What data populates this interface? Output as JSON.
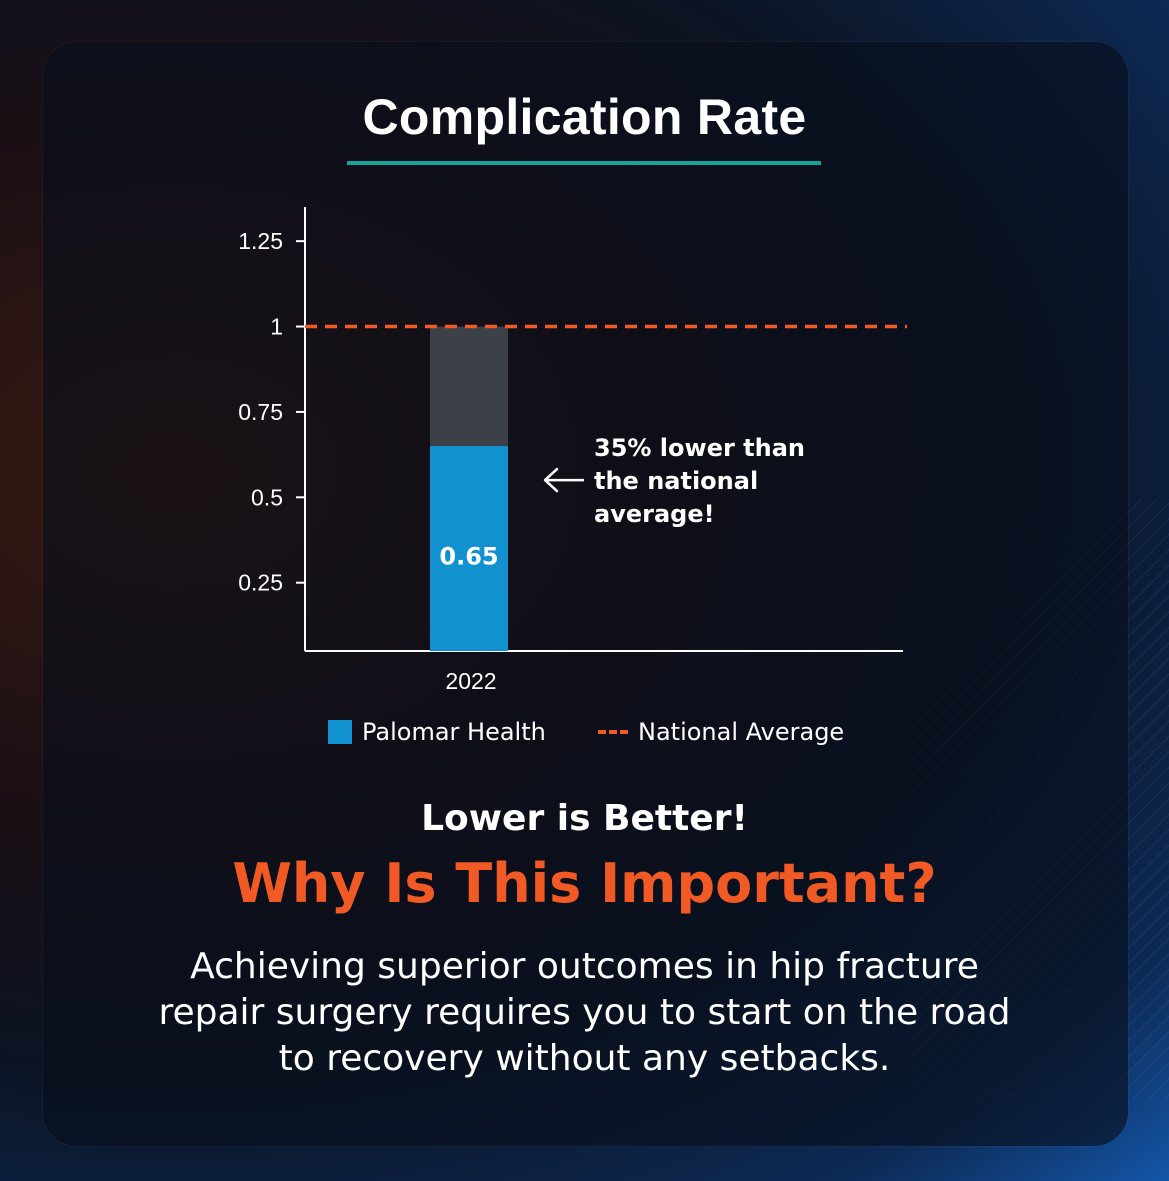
{
  "title": "Complication Rate",
  "chart_data": {
    "type": "bar",
    "categories": [
      "2022"
    ],
    "series": [
      {
        "name": "Palomar Health",
        "values": [
          0.65
        ],
        "color": "#1191d0"
      }
    ],
    "reference_line": {
      "name": "National Average",
      "value": 1,
      "color": "#f15a24",
      "style": "dashed"
    },
    "bar_remainder_color": "#3b4049",
    "bar_data_labels": [
      "0.65"
    ],
    "yticks": [
      0.25,
      0.5,
      0.75,
      1,
      1.25
    ],
    "ytick_labels": [
      "0.25",
      "0.5",
      "0.75",
      "1",
      "1.25"
    ],
    "ylim": [
      0.05,
      1.35
    ],
    "xlabel": "",
    "ylabel": "",
    "grid": false,
    "legend_placement": "bottom",
    "annotation": {
      "lines": [
        "35% lower than",
        "the national",
        "average!"
      ],
      "points_to": 0.65
    }
  },
  "legend": {
    "series_label": "Palomar Health",
    "reference_label": "National Average"
  },
  "lower_is_better": "Lower is Better!",
  "why_heading": "Why Is This Important?",
  "body_lines": [
    "Achieving superior outcomes in hip fracture",
    "repair surgery requires you to start on the road",
    "to recovery without any setbacks."
  ],
  "colors": {
    "accent_teal": "#18a39a",
    "accent_orange": "#f15a24",
    "bar_blue": "#1191d0"
  }
}
